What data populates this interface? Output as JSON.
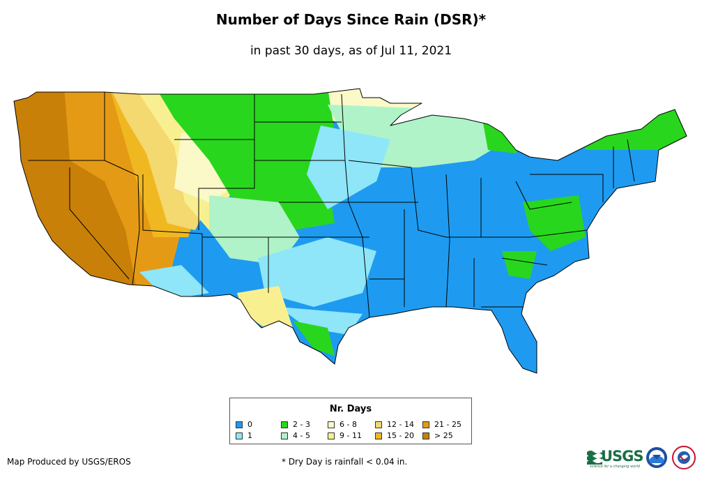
{
  "title": "Number of Days Since Rain (DSR)*",
  "subtitle": "in past 30 days, as of Jul 11, 2021",
  "legend": {
    "title": "Nr. Days",
    "items": [
      {
        "label": "0",
        "color": "#1e9bf0"
      },
      {
        "label": "1",
        "color": "#8ee6f8"
      },
      {
        "label": "2 - 3",
        "color": "#29d61e"
      },
      {
        "label": "4 - 5",
        "color": "#b0f3c8"
      },
      {
        "label": "6 - 8",
        "color": "#fbf9c8"
      },
      {
        "label": "9 - 11",
        "color": "#f8f090"
      },
      {
        "label": "12 - 14",
        "color": "#f4d870"
      },
      {
        "label": "15 - 20",
        "color": "#f0b820"
      },
      {
        "label": "21 - 25",
        "color": "#e59a16"
      },
      {
        "label": "> 25",
        "color": "#c98008"
      }
    ]
  },
  "credit": "Map Produced by USGS/EROS",
  "footnote": "* Dry Day is rainfall < 0.04 in.",
  "logos": {
    "usgs": "USGS",
    "usgs_tagline": "science for a changing world",
    "noaa": "NOAA",
    "nws": "NWS"
  }
}
